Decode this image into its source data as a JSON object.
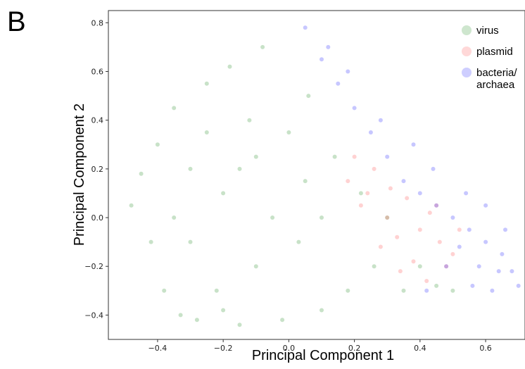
{
  "panel_label": "B",
  "chart_data": {
    "type": "scatter",
    "title": "",
    "xlabel": "Principal Component 1",
    "ylabel": "Principal Component 2",
    "xlim": [
      -0.55,
      0.72
    ],
    "ylim": [
      -0.5,
      0.85
    ],
    "xticks": [
      "−0.4",
      "−0.2",
      "0.0",
      "0.2",
      "0.4",
      "0.6"
    ],
    "xtick_values": [
      -0.4,
      -0.2,
      0.0,
      0.2,
      0.4,
      0.6
    ],
    "yticks": [
      "−0.4",
      "−0.2",
      "0.0",
      "0.2",
      "0.4",
      "0.6",
      "0.8"
    ],
    "ytick_values": [
      -0.4,
      -0.2,
      0.0,
      0.2,
      0.4,
      0.6,
      0.8
    ],
    "grid": false,
    "legend_position": "top-right",
    "series": [
      {
        "name": "virus",
        "color": "#228b22",
        "opacity": 0.25,
        "points": [
          [
            -0.48,
            0.05
          ],
          [
            -0.45,
            0.18
          ],
          [
            -0.42,
            -0.1
          ],
          [
            -0.4,
            0.3
          ],
          [
            -0.38,
            -0.3
          ],
          [
            -0.35,
            0.45
          ],
          [
            -0.33,
            -0.4
          ],
          [
            -0.3,
            0.2
          ],
          [
            -0.28,
            -0.42
          ],
          [
            -0.25,
            0.55
          ],
          [
            -0.22,
            -0.3
          ],
          [
            -0.2,
            0.1
          ],
          [
            -0.18,
            0.62
          ],
          [
            -0.15,
            -0.44
          ],
          [
            -0.12,
            0.4
          ],
          [
            -0.1,
            -0.2
          ],
          [
            -0.08,
            0.7
          ],
          [
            -0.05,
            0.0
          ],
          [
            -0.02,
            -0.42
          ],
          [
            0.0,
            0.35
          ],
          [
            0.03,
            -0.1
          ],
          [
            0.06,
            0.5
          ],
          [
            0.1,
            -0.38
          ],
          [
            0.14,
            0.25
          ],
          [
            0.18,
            -0.3
          ],
          [
            0.22,
            0.1
          ],
          [
            0.26,
            -0.2
          ],
          [
            0.3,
            0.0
          ],
          [
            0.35,
            -0.3
          ],
          [
            0.4,
            -0.2
          ],
          [
            0.45,
            -0.28
          ],
          [
            0.5,
            -0.3
          ],
          [
            -0.3,
            -0.1
          ],
          [
            -0.2,
            -0.38
          ],
          [
            -0.1,
            0.25
          ],
          [
            0.05,
            0.15
          ],
          [
            -0.35,
            0.0
          ],
          [
            -0.25,
            0.35
          ],
          [
            -0.15,
            0.2
          ],
          [
            0.1,
            0.0
          ]
        ]
      },
      {
        "name": "plasmid",
        "color": "#ff4d4d",
        "opacity": 0.25,
        "points": [
          [
            0.18,
            0.15
          ],
          [
            0.22,
            0.05
          ],
          [
            0.26,
            0.2
          ],
          [
            0.3,
            0.0
          ],
          [
            0.33,
            -0.08
          ],
          [
            0.36,
            0.08
          ],
          [
            0.4,
            -0.05
          ],
          [
            0.43,
            0.02
          ],
          [
            0.46,
            -0.1
          ],
          [
            0.5,
            -0.15
          ],
          [
            0.38,
            -0.18
          ],
          [
            0.34,
            -0.22
          ],
          [
            0.28,
            -0.12
          ],
          [
            0.24,
            0.1
          ],
          [
            0.42,
            -0.26
          ],
          [
            0.48,
            -0.2
          ],
          [
            0.31,
            0.12
          ],
          [
            0.2,
            0.25
          ],
          [
            0.45,
            0.05
          ],
          [
            0.52,
            -0.05
          ]
        ]
      },
      {
        "name": "bacteria/\narchaea",
        "color": "#1f1fff",
        "opacity": 0.25,
        "points": [
          [
            0.05,
            0.78
          ],
          [
            0.1,
            0.65
          ],
          [
            0.15,
            0.55
          ],
          [
            0.2,
            0.45
          ],
          [
            0.25,
            0.35
          ],
          [
            0.3,
            0.25
          ],
          [
            0.35,
            0.15
          ],
          [
            0.4,
            0.1
          ],
          [
            0.45,
            0.05
          ],
          [
            0.5,
            0.0
          ],
          [
            0.55,
            -0.05
          ],
          [
            0.6,
            -0.1
          ],
          [
            0.65,
            -0.15
          ],
          [
            0.68,
            -0.22
          ],
          [
            0.7,
            -0.28
          ],
          [
            0.62,
            -0.3
          ],
          [
            0.58,
            -0.2
          ],
          [
            0.52,
            -0.12
          ],
          [
            0.48,
            -0.2
          ],
          [
            0.42,
            -0.3
          ],
          [
            0.12,
            0.7
          ],
          [
            0.18,
            0.6
          ],
          [
            0.28,
            0.4
          ],
          [
            0.38,
            0.3
          ],
          [
            0.44,
            0.2
          ],
          [
            0.54,
            0.1
          ],
          [
            0.6,
            0.05
          ],
          [
            0.66,
            -0.05
          ],
          [
            0.56,
            -0.28
          ],
          [
            0.64,
            -0.22
          ]
        ]
      }
    ]
  }
}
